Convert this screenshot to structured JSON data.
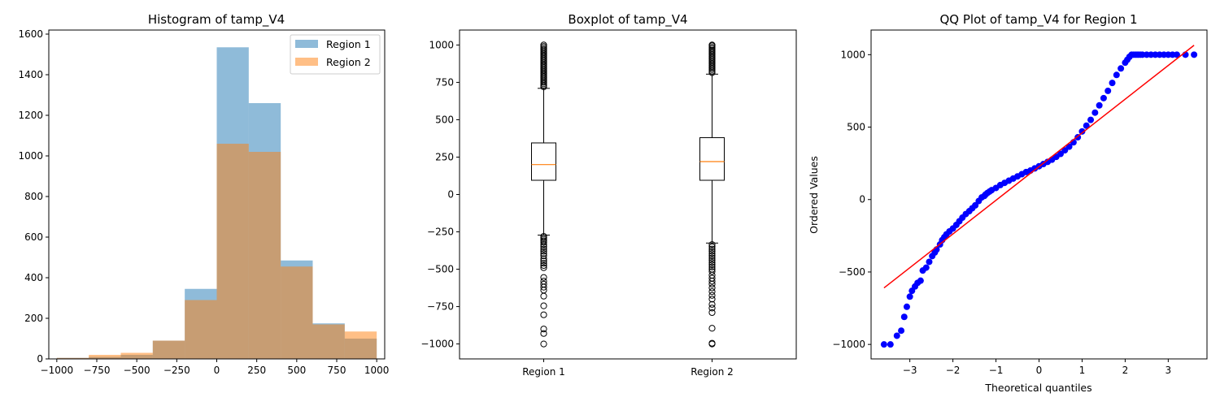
{
  "colors": {
    "region1": "#1f77b4",
    "region2": "#ff7f0e",
    "median": "#ff7f0e",
    "qq_points": "#0000ff",
    "qq_line": "#ff0000"
  },
  "chart_data": [
    {
      "type": "histogram",
      "title": "Histogram of tamp_V4",
      "xlabel": "",
      "ylabel": "",
      "xlim": [
        -1050,
        1050
      ],
      "ylim": [
        0,
        1620
      ],
      "xticks": [
        -1000,
        -750,
        -500,
        -250,
        0,
        250,
        500,
        750,
        1000
      ],
      "xtick_labels": [
        "−1000",
        "−750",
        "−500",
        "−250",
        "0",
        "250",
        "500",
        "750",
        "1000"
      ],
      "yticks": [
        0,
        200,
        400,
        600,
        800,
        1000,
        1200,
        1400,
        1600
      ],
      "ytick_labels": [
        "0",
        "200",
        "400",
        "600",
        "800",
        "1000",
        "1200",
        "1400",
        "1600"
      ],
      "bin_edges": [
        -1000,
        -800,
        -600,
        -400,
        -200,
        0,
        200,
        400,
        600,
        800,
        1000
      ],
      "legend": {
        "location": "upper right",
        "entries": [
          "Region 1",
          "Region 2"
        ]
      },
      "series": [
        {
          "name": "Region 1",
          "color": "#1f77b4",
          "alpha": 0.5,
          "counts": [
            5,
            10,
            20,
            90,
            345,
            1535,
            1260,
            485,
            175,
            100
          ]
        },
        {
          "name": "Region 2",
          "color": "#ff7f0e",
          "alpha": 0.5,
          "counts": [
            5,
            20,
            30,
            90,
            290,
            1060,
            1020,
            455,
            170,
            135
          ]
        }
      ]
    },
    {
      "type": "boxplot",
      "title": "Boxplot of tamp_V4",
      "xlabel": "",
      "ylabel": "",
      "ylim": [
        -1100,
        1100
      ],
      "yticks": [
        -1000,
        -750,
        -500,
        -250,
        0,
        250,
        500,
        750,
        1000
      ],
      "ytick_labels": [
        "−1000",
        "−750",
        "−500",
        "−250",
        "0",
        "250",
        "500",
        "750",
        "1000"
      ],
      "categories": [
        "Region 1",
        "Region 2"
      ],
      "boxes": [
        {
          "name": "Region 1",
          "q1": 95,
          "median": 200,
          "q3": 345,
          "whisker_low": -272,
          "whisker_high": 710,
          "outliers_low": [
            -280,
            -290,
            -300,
            -310,
            -320,
            -335,
            -350,
            -365,
            -380,
            -395,
            -410,
            -430,
            -445,
            -460,
            -475,
            -490,
            -555,
            -580,
            -600,
            -620,
            -640,
            -680,
            -745,
            -805,
            -900,
            -930,
            -1000
          ],
          "outliers_high": [
            720,
            730,
            740,
            750,
            760,
            770,
            780,
            790,
            800,
            810,
            820,
            830,
            840,
            850,
            860,
            870,
            880,
            890,
            900,
            910,
            920,
            930,
            940,
            950,
            960,
            970,
            980,
            990,
            1000
          ]
        },
        {
          "name": "Region 2",
          "q1": 95,
          "median": 220,
          "q3": 380,
          "whisker_low": -325,
          "whisker_high": 805,
          "outliers_low": [
            -335,
            -350,
            -365,
            -380,
            -395,
            -410,
            -425,
            -440,
            -455,
            -470,
            -485,
            -500,
            -515,
            -540,
            -560,
            -580,
            -600,
            -625,
            -650,
            -675,
            -700,
            -735,
            -760,
            -790,
            -895,
            -995,
            -1000
          ],
          "outliers_high": [
            815,
            825,
            835,
            845,
            855,
            865,
            875,
            885,
            895,
            905,
            915,
            925,
            935,
            945,
            955,
            965,
            975,
            985,
            995,
            1000
          ]
        }
      ]
    },
    {
      "type": "scatter",
      "title": "QQ Plot of tamp_V4 for Region 1",
      "xlabel": "Theoretical quantiles",
      "ylabel": "Ordered Values",
      "xlim": [
        -3.9,
        3.9
      ],
      "ylim": [
        -1100,
        1170
      ],
      "xticks": [
        -3,
        -2,
        -1,
        0,
        1,
        2,
        3
      ],
      "xtick_labels": [
        "−3",
        "−2",
        "−1",
        "0",
        "1",
        "2",
        "3"
      ],
      "yticks": [
        -1000,
        -500,
        0,
        500,
        1000
      ],
      "ytick_labels": [
        "−1000",
        "−500",
        "0",
        "500",
        "1000"
      ],
      "fit_line": {
        "x": [
          -3.6,
          3.6
        ],
        "y": [
          -610,
          1065
        ]
      },
      "points": {
        "x": [
          -3.6,
          -3.45,
          -3.3,
          -3.2,
          -3.13,
          -3.07,
          -3.0,
          -2.95,
          -2.88,
          -2.82,
          -2.75,
          -2.7,
          -2.62,
          -2.55,
          -2.48,
          -2.42,
          -2.38,
          -2.3,
          -2.25,
          -2.2,
          -2.15,
          -2.08,
          -2.0,
          -1.92,
          -1.85,
          -1.78,
          -1.7,
          -1.62,
          -1.55,
          -1.48,
          -1.4,
          -1.33,
          -1.27,
          -1.24,
          -1.2,
          -1.15,
          -1.1,
          -1.0,
          -0.9,
          -0.8,
          -0.7,
          -0.6,
          -0.5,
          -0.4,
          -0.3,
          -0.2,
          -0.1,
          0.0,
          0.1,
          0.2,
          0.3,
          0.4,
          0.5,
          0.6,
          0.7,
          0.8,
          0.9,
          1.0,
          1.1,
          1.2,
          1.3,
          1.4,
          1.5,
          1.6,
          1.7,
          1.8,
          1.9,
          2.0,
          2.05,
          2.1,
          2.15,
          2.2,
          2.25,
          2.3,
          2.35,
          2.4,
          2.5,
          2.6,
          2.7,
          2.8,
          2.9,
          3.0,
          3.1,
          3.2,
          3.4,
          3.6
        ],
        "y": [
          -1000,
          -1000,
          -940,
          -905,
          -810,
          -740,
          -670,
          -630,
          -600,
          -575,
          -560,
          -490,
          -470,
          -430,
          -390,
          -365,
          -345,
          -310,
          -280,
          -260,
          -240,
          -220,
          -200,
          -175,
          -150,
          -125,
          -100,
          -80,
          -60,
          -40,
          -10,
          15,
          25,
          35,
          45,
          55,
          65,
          80,
          100,
          115,
          130,
          145,
          160,
          175,
          190,
          200,
          215,
          230,
          245,
          260,
          275,
          295,
          315,
          340,
          365,
          395,
          430,
          470,
          510,
          550,
          600,
          650,
          700,
          750,
          805,
          860,
          905,
          945,
          965,
          985,
          1000,
          1000,
          1000,
          1000,
          1000,
          1000,
          1000,
          1000,
          1000,
          1000,
          1000,
          1000,
          1000,
          1000,
          1000,
          1000
        ]
      }
    }
  ]
}
